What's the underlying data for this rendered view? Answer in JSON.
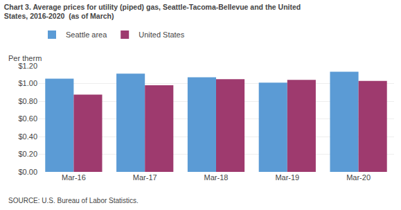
{
  "chart_data": {
    "type": "bar",
    "title": "Chart 3. Average prices for utility (piped) gas, Seattle-Tacoma-Bellevue and the United\nStates, 2016-2020  (as of March)",
    "ylabel": "Per therm",
    "annotations": [
      "SOURCE: U.S. Bureau of Labor Statistics."
    ],
    "categories": [
      "Mar-16",
      "Mar-17",
      "Mar-18",
      "Mar-19",
      "Mar-20"
    ],
    "series": [
      {
        "name": "Seattle area",
        "color": "#5B9BD5",
        "values": [
          1.054,
          1.112,
          1.071,
          1.01,
          1.133
        ]
      },
      {
        "name": "United States",
        "color": "#9E3A6E",
        "values": [
          0.874,
          0.981,
          1.049,
          1.042,
          1.03
        ]
      }
    ],
    "ylim": [
      0.0,
      1.2
    ],
    "yticks": [
      {
        "value": 0.0,
        "label": "$0.00"
      },
      {
        "value": 0.2,
        "label": "$0.20"
      },
      {
        "value": 0.4,
        "label": "$0.40"
      },
      {
        "value": 0.6,
        "label": "$0.60"
      },
      {
        "value": 0.8,
        "label": "$0.80"
      },
      {
        "value": 1.0,
        "label": "$1.00"
      },
      {
        "value": 1.2,
        "label": "$1.20"
      }
    ],
    "grid": true,
    "legend": "upper left"
  }
}
